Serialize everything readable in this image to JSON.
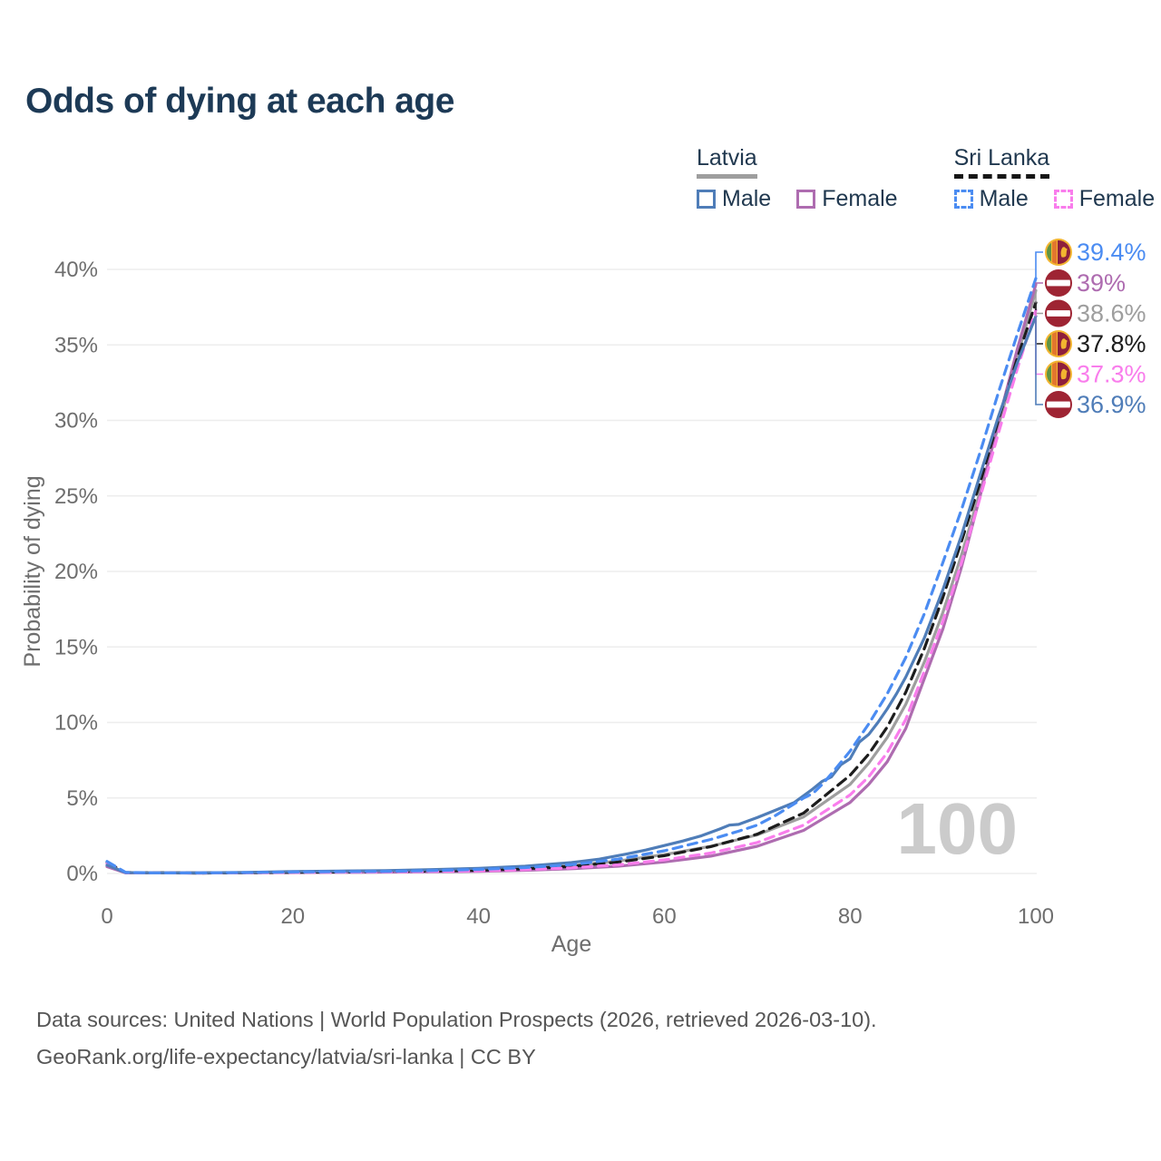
{
  "title": "Odds of dying at each age",
  "legend": {
    "latvia": {
      "name": "Latvia",
      "male": "Male",
      "female": "Female"
    },
    "sri_lanka": {
      "name": "Sri Lanka",
      "male": "Male",
      "female": "Female"
    }
  },
  "colors": {
    "latvia_male": "#4f7db8",
    "latvia_female": "#ae6cb0",
    "latvia_all": "#9e9e9e",
    "sri_lanka_male": "#4b8cf2",
    "sri_lanka_female": "#f97dec",
    "sri_lanka_all": "#1c1c1c",
    "title_text": "#1d3a56",
    "axis_text": "#6e6e6e",
    "grid": "#ededed",
    "watermark": "#cbcbcb"
  },
  "chart_data": {
    "type": "line",
    "title": "Odds of dying at each age",
    "xlabel": "Age",
    "ylabel": "Probability of dying",
    "x_ticks": [
      0,
      20,
      40,
      60,
      80,
      100
    ],
    "y_ticks": [
      0,
      5,
      10,
      15,
      20,
      25,
      30,
      35,
      40
    ],
    "xlim": [
      0,
      100
    ],
    "ylim": [
      0,
      42
    ],
    "grid": "horizontal",
    "hover_age_watermark": "100",
    "series": [
      {
        "id": "latvia_all",
        "name": "Latvia (both sexes)",
        "color": "#9e9e9e",
        "dash": "",
        "points": [
          [
            0,
            0.5
          ],
          [
            2,
            0.05
          ],
          [
            10,
            0.03
          ],
          [
            20,
            0.09
          ],
          [
            30,
            0.13
          ],
          [
            40,
            0.23
          ],
          [
            45,
            0.33
          ],
          [
            50,
            0.51
          ],
          [
            55,
            0.82
          ],
          [
            60,
            1.25
          ],
          [
            65,
            1.8
          ],
          [
            70,
            2.55
          ],
          [
            75,
            3.75
          ],
          [
            80,
            5.9
          ],
          [
            82,
            7.3
          ],
          [
            84,
            9.0
          ],
          [
            86,
            11.2
          ],
          [
            88,
            14.0
          ],
          [
            90,
            17.3
          ],
          [
            92,
            21.1
          ],
          [
            94,
            25.3
          ],
          [
            96,
            29.7
          ],
          [
            98,
            34.2
          ],
          [
            100,
            38.6
          ]
        ]
      },
      {
        "id": "latvia_female",
        "name": "Latvia Female",
        "color": "#ae6cb0",
        "dash": "",
        "points": [
          [
            0,
            0.45
          ],
          [
            2,
            0.04
          ],
          [
            10,
            0.03
          ],
          [
            20,
            0.06
          ],
          [
            30,
            0.09
          ],
          [
            40,
            0.14
          ],
          [
            45,
            0.21
          ],
          [
            50,
            0.31
          ],
          [
            55,
            0.48
          ],
          [
            60,
            0.76
          ],
          [
            65,
            1.15
          ],
          [
            70,
            1.8
          ],
          [
            75,
            2.85
          ],
          [
            80,
            4.7
          ],
          [
            82,
            5.9
          ],
          [
            84,
            7.4
          ],
          [
            86,
            9.6
          ],
          [
            88,
            12.9
          ],
          [
            90,
            16.2
          ],
          [
            92,
            20.3
          ],
          [
            94,
            25.0
          ],
          [
            96,
            30.0
          ],
          [
            98,
            34.7
          ],
          [
            100,
            39.0
          ]
        ]
      },
      {
        "id": "sri_lanka_all",
        "name": "Sri Lanka (both sexes)",
        "color": "#1c1c1c",
        "dash": "11 7",
        "points": [
          [
            0,
            0.72
          ],
          [
            2,
            0.06
          ],
          [
            10,
            0.03
          ],
          [
            20,
            0.08
          ],
          [
            30,
            0.12
          ],
          [
            40,
            0.21
          ],
          [
            45,
            0.31
          ],
          [
            50,
            0.47
          ],
          [
            55,
            0.75
          ],
          [
            60,
            1.18
          ],
          [
            65,
            1.78
          ],
          [
            70,
            2.6
          ],
          [
            75,
            4.0
          ],
          [
            80,
            6.5
          ],
          [
            82,
            7.9
          ],
          [
            84,
            9.7
          ],
          [
            86,
            12.0
          ],
          [
            88,
            14.9
          ],
          [
            90,
            18.3
          ],
          [
            92,
            22.0
          ],
          [
            94,
            25.9
          ],
          [
            96,
            30.1
          ],
          [
            98,
            34.1
          ],
          [
            100,
            37.8
          ]
        ]
      },
      {
        "id": "sri_lanka_female",
        "name": "Sri Lanka Female",
        "color": "#f97dec",
        "dash": "10 7",
        "points": [
          [
            0,
            0.65
          ],
          [
            2,
            0.05
          ],
          [
            10,
            0.03
          ],
          [
            20,
            0.07
          ],
          [
            30,
            0.1
          ],
          [
            40,
            0.17
          ],
          [
            45,
            0.25
          ],
          [
            50,
            0.37
          ],
          [
            55,
            0.57
          ],
          [
            60,
            0.9
          ],
          [
            65,
            1.35
          ],
          [
            70,
            2.05
          ],
          [
            75,
            3.2
          ],
          [
            80,
            5.2
          ],
          [
            82,
            6.4
          ],
          [
            84,
            8.0
          ],
          [
            86,
            10.2
          ],
          [
            88,
            13.4
          ],
          [
            90,
            16.7
          ],
          [
            92,
            20.6
          ],
          [
            94,
            24.9
          ],
          [
            96,
            29.2
          ],
          [
            98,
            33.4
          ],
          [
            100,
            37.3
          ]
        ]
      },
      {
        "id": "latvia_male",
        "name": "Latvia Male",
        "color": "#4f7db8",
        "dash": "",
        "points": [
          [
            0,
            0.55
          ],
          [
            2,
            0.06
          ],
          [
            5,
            0.04
          ],
          [
            10,
            0.04
          ],
          [
            15,
            0.07
          ],
          [
            20,
            0.13
          ],
          [
            25,
            0.16
          ],
          [
            30,
            0.19
          ],
          [
            35,
            0.26
          ],
          [
            40,
            0.34
          ],
          [
            45,
            0.48
          ],
          [
            50,
            0.72
          ],
          [
            53,
            0.95
          ],
          [
            56,
            1.3
          ],
          [
            58,
            1.55
          ],
          [
            60,
            1.85
          ],
          [
            62,
            2.15
          ],
          [
            64,
            2.5
          ],
          [
            66,
            2.95
          ],
          [
            67,
            3.2
          ],
          [
            68,
            3.25
          ],
          [
            70,
            3.7
          ],
          [
            72,
            4.2
          ],
          [
            74,
            4.7
          ],
          [
            76,
            5.6
          ],
          [
            77,
            6.1
          ],
          [
            78,
            6.4
          ],
          [
            79,
            7.2
          ],
          [
            80,
            7.6
          ],
          [
            81,
            8.7
          ],
          [
            82,
            9.2
          ],
          [
            83,
            10.0
          ],
          [
            84,
            10.9
          ],
          [
            85,
            11.9
          ],
          [
            86,
            13.0
          ],
          [
            88,
            15.6
          ],
          [
            90,
            18.8
          ],
          [
            92,
            22.4
          ],
          [
            94,
            26.4
          ],
          [
            96,
            30.3
          ],
          [
            98,
            33.8
          ],
          [
            100,
            36.9
          ]
        ]
      },
      {
        "id": "sri_lanka_male",
        "name": "Sri Lanka Male",
        "color": "#4b8cf2",
        "dash": "10 7",
        "points": [
          [
            0,
            0.8
          ],
          [
            2,
            0.07
          ],
          [
            5,
            0.04
          ],
          [
            10,
            0.04
          ],
          [
            15,
            0.06
          ],
          [
            20,
            0.1
          ],
          [
            25,
            0.12
          ],
          [
            30,
            0.14
          ],
          [
            35,
            0.19
          ],
          [
            40,
            0.27
          ],
          [
            45,
            0.39
          ],
          [
            50,
            0.58
          ],
          [
            55,
            0.95
          ],
          [
            60,
            1.5
          ],
          [
            65,
            2.25
          ],
          [
            68,
            2.8
          ],
          [
            70,
            3.2
          ],
          [
            72,
            3.85
          ],
          [
            75,
            5.0
          ],
          [
            76,
            5.3
          ],
          [
            77,
            5.9
          ],
          [
            78,
            6.6
          ],
          [
            80,
            8.1
          ],
          [
            82,
            9.9
          ],
          [
            84,
            11.9
          ],
          [
            86,
            14.3
          ],
          [
            88,
            17.2
          ],
          [
            90,
            20.6
          ],
          [
            92,
            24.1
          ],
          [
            94,
            27.9
          ],
          [
            96,
            31.9
          ],
          [
            98,
            35.7
          ],
          [
            100,
            39.4
          ]
        ]
      }
    ],
    "end_labels": [
      {
        "series": "sri_lanka_male",
        "value": "39.4%",
        "flag": "sri-lanka"
      },
      {
        "series": "latvia_female",
        "value": "39%",
        "flag": "latvia"
      },
      {
        "series": "latvia_all",
        "value": "38.6%",
        "flag": "latvia"
      },
      {
        "series": "sri_lanka_all",
        "value": "37.8%",
        "flag": "sri-lanka"
      },
      {
        "series": "sri_lanka_female",
        "value": "37.3%",
        "flag": "sri-lanka"
      },
      {
        "series": "latvia_male",
        "value": "36.9%",
        "flag": "latvia"
      }
    ]
  },
  "footer": {
    "line1": "Data sources: United Nations | World Population Prospects (2026, retrieved 2026-03-10).",
    "line2": "GeoRank.org/life-expectancy/latvia/sri-lanka | CC BY"
  }
}
